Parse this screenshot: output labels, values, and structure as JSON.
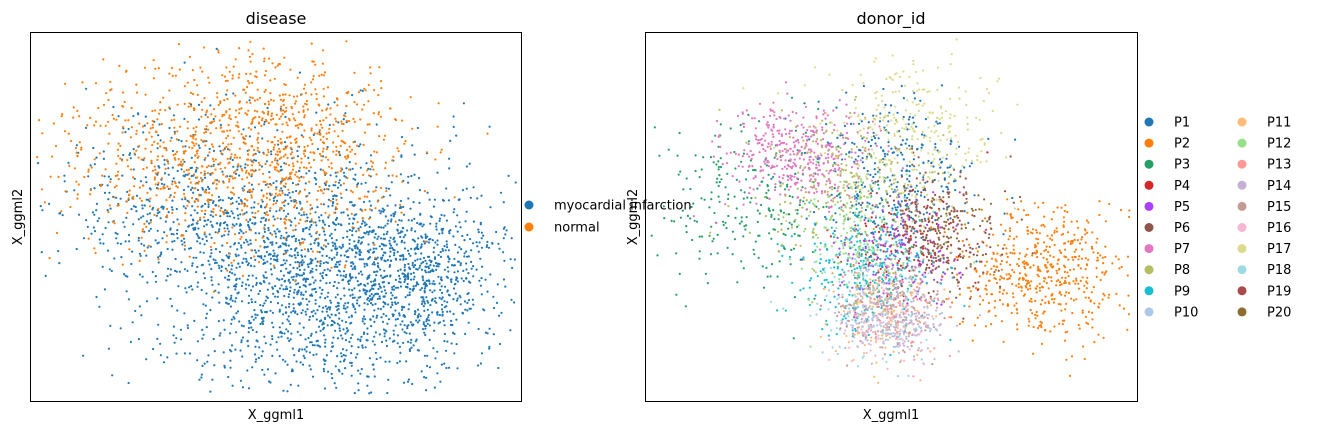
{
  "chart_data": [
    {
      "type": "scatter",
      "title": "disease",
      "xlabel": "X_ggml1",
      "ylabel": "X_ggml2",
      "ticks": "none",
      "grid": false,
      "legend_position": "right",
      "series": [
        {
          "name": "myocardial infarction",
          "color": "#1f77b4",
          "clusters": [
            {
              "cx": 0.58,
              "cy": -0.35,
              "sx": 0.95,
              "sy": 0.55,
              "n": 1900
            },
            {
              "cx": 1.7,
              "cy": -0.4,
              "sx": 0.45,
              "sy": 0.28,
              "n": 450
            },
            {
              "cx": -1.0,
              "cy": 0.25,
              "sx": 0.65,
              "sy": 0.38,
              "n": 380
            }
          ]
        },
        {
          "name": "normal",
          "color": "#ff7f0e",
          "clusters": [
            {
              "cx": -0.4,
              "cy": 0.62,
              "sx": 1.0,
              "sy": 0.42,
              "n": 900
            },
            {
              "cx": 0.25,
              "cy": 0.85,
              "sx": 0.6,
              "sy": 0.35,
              "n": 300
            }
          ]
        }
      ],
      "legend": [
        {
          "label": "myocardial infarction",
          "color": "#1f77b4"
        },
        {
          "label": "normal",
          "color": "#ff7f0e"
        }
      ]
    },
    {
      "type": "scatter",
      "title": "donor_id",
      "xlabel": "X_ggml1",
      "ylabel": "X_ggml2",
      "ticks": "none",
      "grid": false,
      "legend_position": "right",
      "legend_columns": 2,
      "series": [
        {
          "name": "P1",
          "color": "#1f77b4",
          "clusters": [
            {
              "cx": 0.1,
              "cy": 0.45,
              "sx": 0.45,
              "sy": 0.35,
              "n": 350
            }
          ]
        },
        {
          "name": "P2",
          "color": "#ff7f0e",
          "clusters": [
            {
              "cx": 1.75,
              "cy": -0.35,
              "sx": 0.45,
              "sy": 0.28,
              "n": 550
            }
          ]
        },
        {
          "name": "P3",
          "color": "#279e68",
          "clusters": [
            {
              "cx": -1.45,
              "cy": 0.25,
              "sx": 0.45,
              "sy": 0.35,
              "n": 240
            }
          ]
        },
        {
          "name": "P4",
          "color": "#d62728",
          "clusters": [
            {
              "cx": 0.25,
              "cy": -0.15,
              "sx": 0.35,
              "sy": 0.25,
              "n": 90
            }
          ]
        },
        {
          "name": "P5",
          "color": "#aa40fc",
          "clusters": [
            {
              "cx": 0.2,
              "cy": -0.2,
              "sx": 0.35,
              "sy": 0.25,
              "n": 180
            }
          ]
        },
        {
          "name": "P6",
          "color": "#8c564b",
          "clusters": [
            {
              "cx": 0.6,
              "cy": -0.05,
              "sx": 0.35,
              "sy": 0.25,
              "n": 180
            }
          ]
        },
        {
          "name": "P7",
          "color": "#e377c2",
          "clusters": [
            {
              "cx": -0.9,
              "cy": 0.65,
              "sx": 0.4,
              "sy": 0.22,
              "n": 420
            }
          ]
        },
        {
          "name": "P8",
          "color": "#b5bd61",
          "clusters": [
            {
              "cx": -0.4,
              "cy": 0.4,
              "sx": 0.45,
              "sy": 0.35,
              "n": 260
            }
          ]
        },
        {
          "name": "P9",
          "color": "#17becf",
          "clusters": [
            {
              "cx": -0.15,
              "cy": -0.35,
              "sx": 0.35,
              "sy": 0.3,
              "n": 320
            }
          ]
        },
        {
          "name": "P10",
          "color": "#aec7e8",
          "clusters": [
            {
              "cx": 0.1,
              "cy": -0.75,
              "sx": 0.3,
              "sy": 0.18,
              "n": 160
            }
          ]
        },
        {
          "name": "P11",
          "color": "#ffbb78",
          "clusters": [
            {
              "cx": 0.05,
              "cy": -0.7,
              "sx": 0.3,
              "sy": 0.2,
              "n": 120
            }
          ]
        },
        {
          "name": "P12",
          "color": "#98df8a",
          "clusters": [
            {
              "cx": -0.25,
              "cy": 0.0,
              "sx": 0.35,
              "sy": 0.3,
              "n": 180
            }
          ]
        },
        {
          "name": "P13",
          "color": "#ff9896",
          "clusters": [
            {
              "cx": 0.2,
              "cy": -0.6,
              "sx": 0.3,
              "sy": 0.22,
              "n": 90
            }
          ]
        },
        {
          "name": "P14",
          "color": "#c5b0d5",
          "clusters": [
            {
              "cx": 0.15,
              "cy": -0.75,
              "sx": 0.3,
              "sy": 0.18,
              "n": 130
            }
          ]
        },
        {
          "name": "P15",
          "color": "#c49c94",
          "clusters": [
            {
              "cx": 0.0,
              "cy": -0.65,
              "sx": 0.3,
              "sy": 0.2,
              "n": 130
            }
          ]
        },
        {
          "name": "P16",
          "color": "#f7b6d2",
          "clusters": [
            {
              "cx": 0.0,
              "cy": -0.8,
              "sx": 0.25,
              "sy": 0.15,
              "n": 90
            }
          ]
        },
        {
          "name": "P17",
          "color": "#dbdb8d",
          "clusters": [
            {
              "cx": 0.35,
              "cy": 0.85,
              "sx": 0.5,
              "sy": 0.35,
              "n": 280
            }
          ]
        },
        {
          "name": "P18",
          "color": "#9edae5",
          "clusters": [
            {
              "cx": -0.15,
              "cy": -0.5,
              "sx": 0.3,
              "sy": 0.25,
              "n": 110
            }
          ]
        },
        {
          "name": "P19",
          "color": "#ad494a",
          "clusters": [
            {
              "cx": 0.45,
              "cy": 0.05,
              "sx": 0.3,
              "sy": 0.22,
              "n": 100
            }
          ]
        },
        {
          "name": "P20",
          "color": "#8c6d31",
          "clusters": [
            {
              "cx": 0.7,
              "cy": 0.0,
              "sx": 0.25,
              "sy": 0.2,
              "n": 80
            }
          ]
        }
      ]
    }
  ]
}
